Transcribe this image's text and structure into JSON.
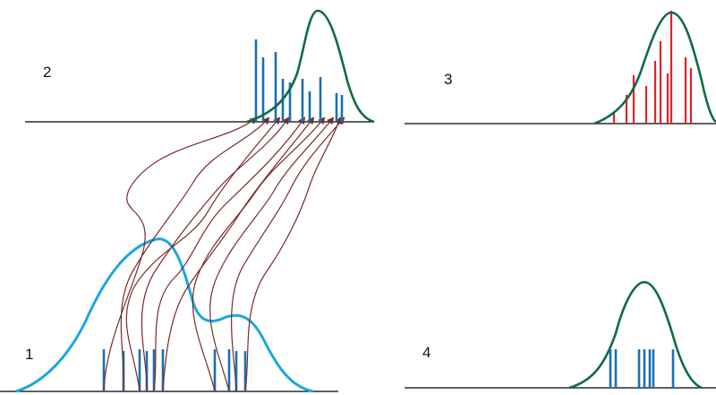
{
  "panels": [
    {
      "id": "1",
      "label": "1"
    },
    {
      "id": "2",
      "label": "2"
    },
    {
      "id": "3",
      "label": "3"
    },
    {
      "id": "4",
      "label": "4"
    }
  ],
  "colors": {
    "teal_curve": "#1aa7de",
    "green_curve": "#0f6b47",
    "blue_spikes": "#1a6fb3",
    "red_spikes": "#e02327",
    "arrows": "#7a2a2a",
    "axis": "#000000"
  }
}
